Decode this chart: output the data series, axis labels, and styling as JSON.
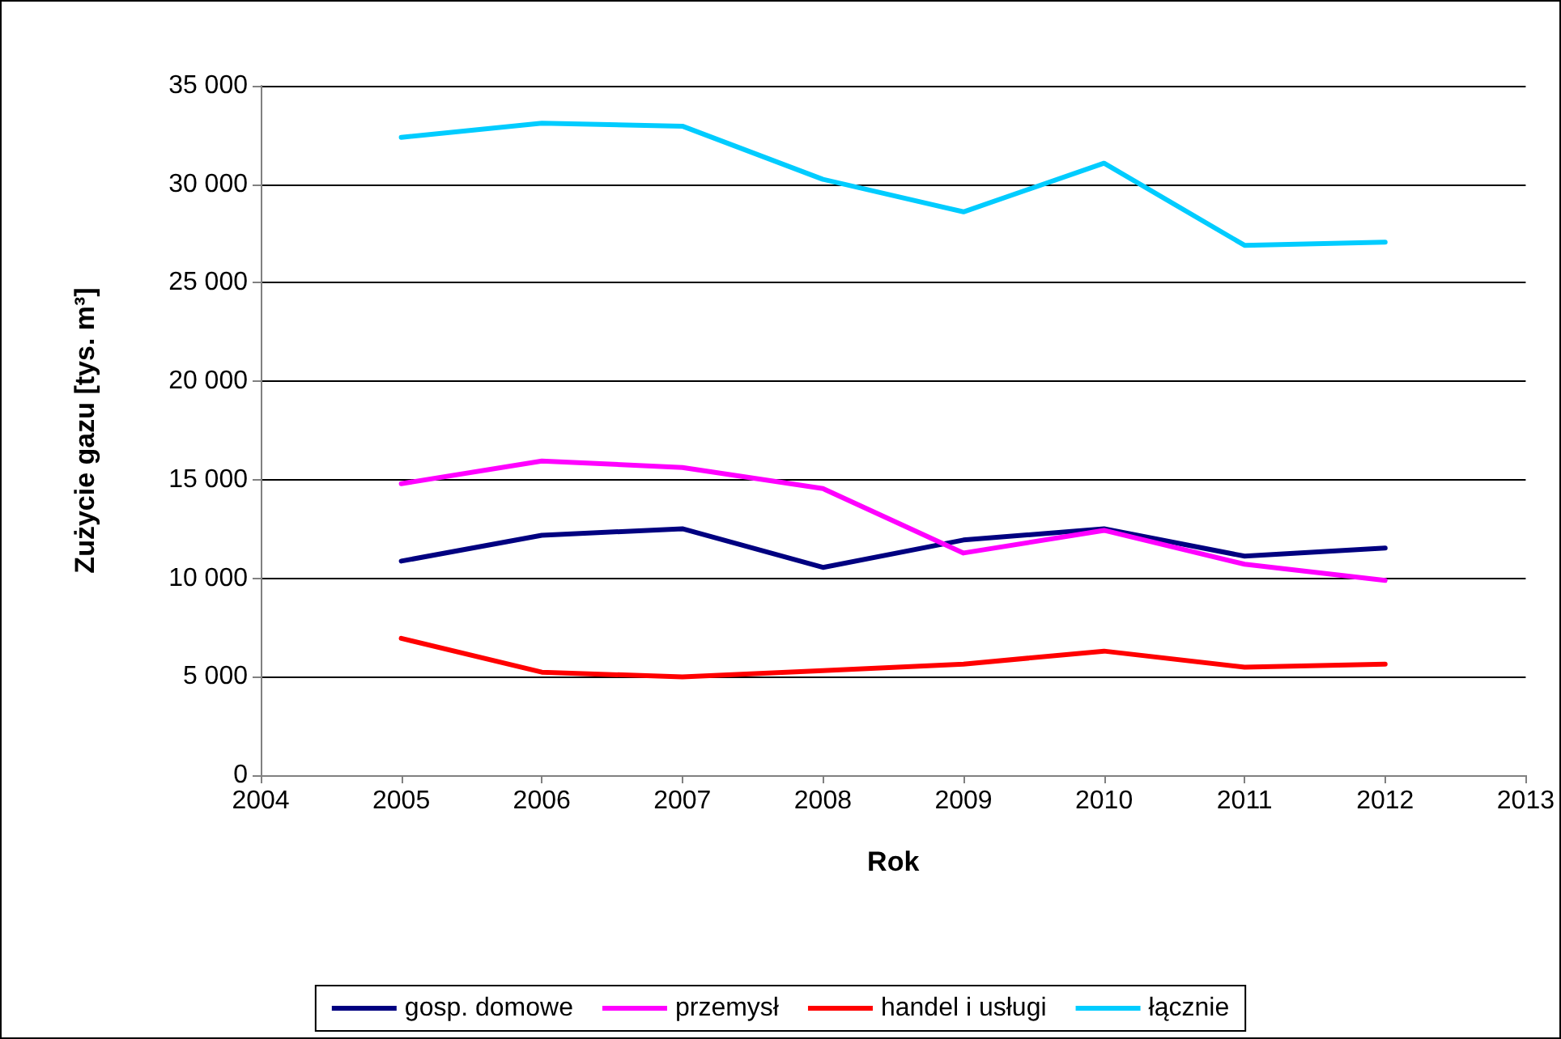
{
  "chart_data": {
    "type": "line",
    "xlabel": "Rok",
    "ylabel": "Zużycie gazu [tys. m³]",
    "x": [
      2005,
      2006,
      2007,
      2008,
      2009,
      2010,
      2011,
      2012
    ],
    "series": [
      {
        "name": "gosp. domowe",
        "color": "#000080",
        "values": [
          10870,
          12180,
          12510,
          10550,
          11940,
          12510,
          11120,
          11530
        ]
      },
      {
        "name": "przemysł",
        "color": "#ff00ff",
        "values": [
          14800,
          15950,
          15620,
          14550,
          11280,
          12430,
          10710,
          9890
        ]
      },
      {
        "name": "handel i usługi",
        "color": "#ff0000",
        "values": [
          6950,
          5230,
          4990,
          5310,
          5640,
          6300,
          5480,
          5640
        ]
      },
      {
        "name": "łącznie",
        "color": "#00ccff",
        "values": [
          32380,
          33100,
          32950,
          30250,
          28600,
          31070,
          26900,
          27060
        ]
      }
    ],
    "xlim": [
      2004,
      2013
    ],
    "xticks": [
      2004,
      2005,
      2006,
      2007,
      2008,
      2009,
      2010,
      2011,
      2012,
      2013
    ],
    "ylim": [
      0,
      35000
    ],
    "yticks": [
      0,
      {
        "value": 5000,
        "label": "5 000"
      },
      {
        "value": 10000,
        "label": "10 000"
      },
      {
        "value": 15000,
        "label": "15 000"
      },
      {
        "value": 20000,
        "label": "20 000"
      },
      {
        "value": 25000,
        "label": "25 000"
      },
      {
        "value": 30000,
        "label": "30 000"
      },
      {
        "value": 35000,
        "label": "35 000"
      }
    ],
    "grid": "y",
    "legend": "bottom",
    "marker": "none",
    "line_style": "solid"
  }
}
